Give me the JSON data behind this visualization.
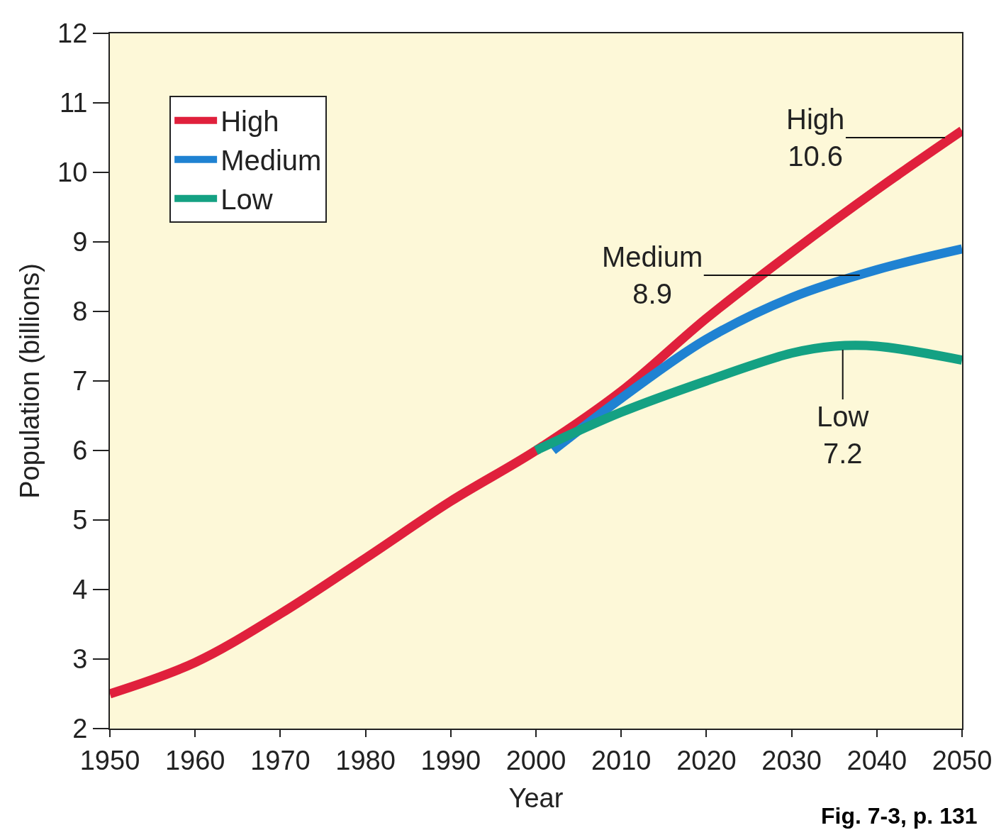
{
  "chart_data": {
    "type": "line",
    "xlabel": "Year",
    "ylabel": "Population (billions)",
    "xlim": [
      1950,
      2050
    ],
    "xticks": [
      1950,
      1960,
      1970,
      1980,
      1990,
      2000,
      2010,
      2020,
      2030,
      2040,
      2050
    ],
    "ylim": [
      2,
      12
    ],
    "yticks": [
      2,
      3,
      4,
      5,
      6,
      7,
      8,
      9,
      10,
      11,
      12
    ],
    "series": [
      {
        "name": "High",
        "color": "#e0203c",
        "x": [
          1950,
          1960,
          1970,
          1980,
          1990,
          2000,
          2010,
          2020,
          2030,
          2040,
          2050
        ],
        "values": [
          2.5,
          2.95,
          3.65,
          4.45,
          5.27,
          6.0,
          6.85,
          7.9,
          8.85,
          9.75,
          10.6
        ]
      },
      {
        "name": "Medium",
        "color": "#1f82d2",
        "x": [
          2002,
          2010,
          2020,
          2030,
          2040,
          2050
        ],
        "values": [
          6.0,
          6.75,
          7.6,
          8.2,
          8.6,
          8.9
        ]
      },
      {
        "name": "Low",
        "color": "#14a183",
        "x": [
          2000,
          2010,
          2020,
          2030,
          2035,
          2040,
          2050
        ],
        "values": [
          6.0,
          6.55,
          7.0,
          7.4,
          7.5,
          7.5,
          7.3
        ]
      }
    ],
    "annotations": [
      {
        "text": "High\n10.6",
        "x": 2048,
        "y": 10.5
      },
      {
        "text": "Medium\n8.9",
        "x": 2038,
        "y": 8.52
      },
      {
        "text": "Low\n7.2",
        "x": 2036,
        "y": 7.45
      },
      "Fig. 7-3, p. 131"
    ],
    "legend": "top left",
    "grid": false,
    "line_style": "solid",
    "marker": "none"
  }
}
